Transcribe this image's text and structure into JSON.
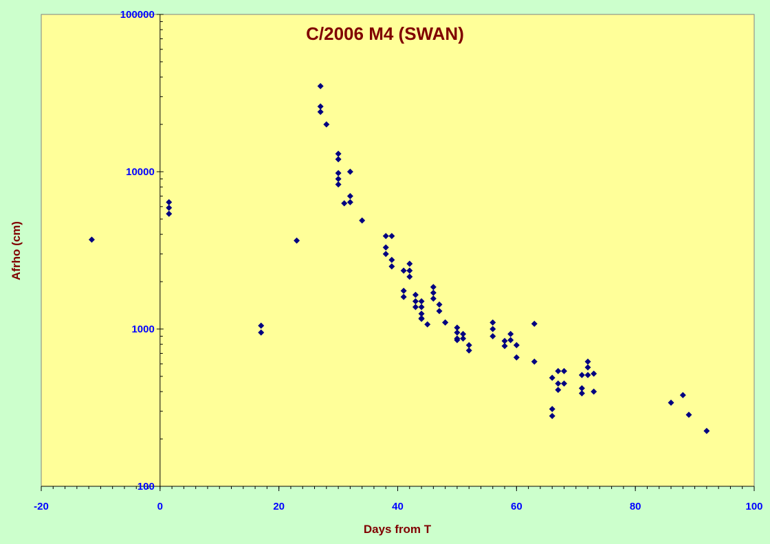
{
  "chart_data": {
    "type": "scatter",
    "title": "C/2006 M4 (SWAN)",
    "xlabel": "Days from T",
    "ylabel": "Afrho (cm)",
    "xlim": [
      -20,
      100
    ],
    "ylim": [
      100,
      100000
    ],
    "yscale": "log",
    "x_ticks": [
      "-20",
      "0",
      "20",
      "40",
      "60",
      "80",
      "100"
    ],
    "y_ticks": [
      "100",
      "1000",
      "10000",
      "100000"
    ],
    "grid": false,
    "legend": "none",
    "colors": {
      "plot_background": "#ffff99",
      "outer_background": "#ccffcc",
      "marker": "#000080",
      "title": "#800000",
      "axis_title": "#800000",
      "tick_label": "#0000ff"
    },
    "series": [
      {
        "marker": "diamond",
        "points": [
          [
            -11.5,
            3700
          ],
          [
            1.5,
            6400
          ],
          [
            1.5,
            5900
          ],
          [
            1.5,
            5400
          ],
          [
            17,
            1050
          ],
          [
            17,
            950
          ],
          [
            23,
            3650
          ],
          [
            27,
            35000
          ],
          [
            27,
            26000
          ],
          [
            27,
            24000
          ],
          [
            28,
            20000
          ],
          [
            30,
            13000
          ],
          [
            30,
            12000
          ],
          [
            30,
            9800
          ],
          [
            30,
            9000
          ],
          [
            30,
            8300
          ],
          [
            31,
            6300
          ],
          [
            32,
            10000
          ],
          [
            32,
            7000
          ],
          [
            32,
            6400
          ],
          [
            34,
            4900
          ],
          [
            38,
            3900
          ],
          [
            38,
            3300
          ],
          [
            38,
            3000
          ],
          [
            39,
            3900
          ],
          [
            39,
            2750
          ],
          [
            39,
            2500
          ],
          [
            41,
            2350
          ],
          [
            41,
            1750
          ],
          [
            41,
            1600
          ],
          [
            42,
            2600
          ],
          [
            42,
            2350
          ],
          [
            42,
            2150
          ],
          [
            43,
            1650
          ],
          [
            43,
            1500
          ],
          [
            43,
            1380
          ],
          [
            44,
            1500
          ],
          [
            44,
            1380
          ],
          [
            44,
            1250
          ],
          [
            44,
            1170
          ],
          [
            44,
            1160
          ],
          [
            45,
            1070
          ],
          [
            46,
            1850
          ],
          [
            46,
            1700
          ],
          [
            46,
            1560
          ],
          [
            47,
            1430
          ],
          [
            47,
            1300
          ],
          [
            48,
            1100
          ],
          [
            48,
            1100
          ],
          [
            50,
            1020
          ],
          [
            50,
            950
          ],
          [
            50,
            870
          ],
          [
            50,
            850
          ],
          [
            51,
            930
          ],
          [
            51,
            870
          ],
          [
            52,
            790
          ],
          [
            52,
            730
          ],
          [
            56,
            1100
          ],
          [
            56,
            1000
          ],
          [
            56,
            900
          ],
          [
            58,
            840
          ],
          [
            58,
            780
          ],
          [
            59,
            930
          ],
          [
            59,
            850
          ],
          [
            60,
            790
          ],
          [
            60,
            660
          ],
          [
            63,
            1080
          ],
          [
            63,
            620
          ],
          [
            66,
            490
          ],
          [
            66,
            310
          ],
          [
            66,
            280
          ],
          [
            67,
            540
          ],
          [
            67,
            450
          ],
          [
            67,
            410
          ],
          [
            68,
            540
          ],
          [
            68,
            450
          ],
          [
            71,
            510
          ],
          [
            71,
            420
          ],
          [
            71,
            390
          ],
          [
            72,
            620
          ],
          [
            72,
            570
          ],
          [
            72,
            510
          ],
          [
            73,
            520
          ],
          [
            73,
            400
          ],
          [
            86,
            340
          ],
          [
            88,
            380
          ],
          [
            89,
            285
          ],
          [
            92,
            225
          ]
        ]
      }
    ]
  }
}
